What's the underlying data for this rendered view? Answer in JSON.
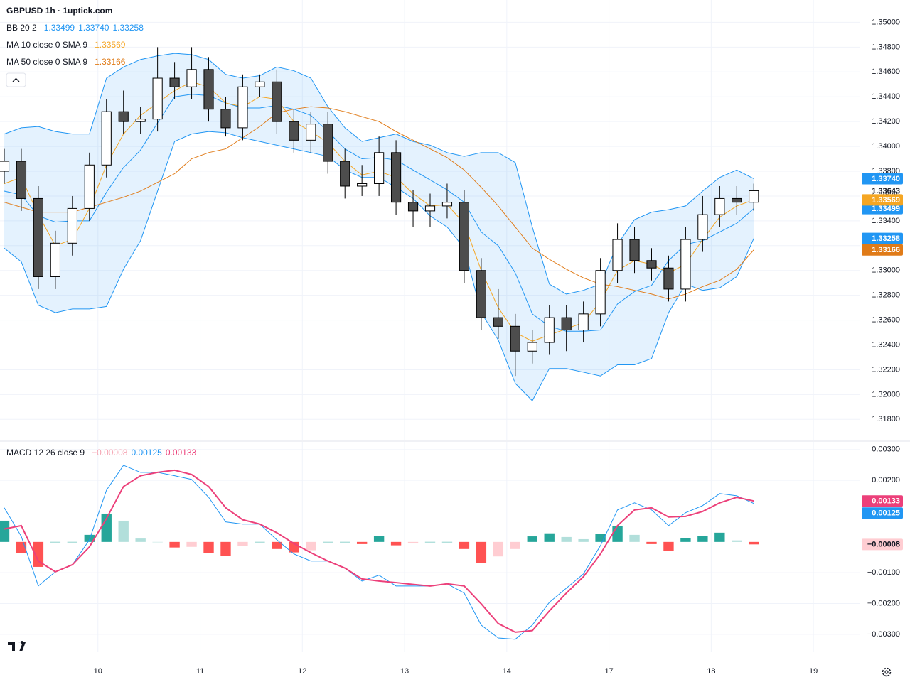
{
  "chart_data": [
    {
      "type": "candlestick",
      "title": "GBPUSD 1h · 1uptick.com",
      "x": [
        0,
        4,
        8,
        12,
        16,
        20,
        24,
        28,
        32,
        36,
        40,
        44,
        48,
        52,
        56,
        60,
        64,
        68,
        72,
        76,
        80,
        84,
        88,
        92,
        96,
        100,
        104,
        108,
        112,
        116,
        120,
        124,
        128,
        132,
        136,
        140,
        144,
        148,
        152,
        156,
        160,
        164,
        168,
        172,
        176
      ],
      "xlim": [
        -1,
        201
      ],
      "ylim": [
        1.3163,
        1.3518
      ],
      "yticks": [
        {
          "value": 1.318,
          "label": "1.31800"
        },
        {
          "value": 1.32,
          "label": "1.32000"
        },
        {
          "value": 1.322,
          "label": "1.32200"
        },
        {
          "value": 1.324,
          "label": "1.32400"
        },
        {
          "value": 1.326,
          "label": "1.32600"
        },
        {
          "value": 1.328,
          "label": "1.32800"
        },
        {
          "value": 1.33,
          "label": "1.33000"
        },
        {
          "value": 1.332,
          "label": "1.33200"
        },
        {
          "value": 1.334,
          "label": "1.33400"
        },
        {
          "value": 1.336,
          "label": "1.33600"
        },
        {
          "value": 1.338,
          "label": "1.33800"
        },
        {
          "value": 1.34,
          "label": "1.34000"
        },
        {
          "value": 1.342,
          "label": "1.34200"
        },
        {
          "value": 1.344,
          "label": "1.34400"
        },
        {
          "value": 1.346,
          "label": "1.34600"
        },
        {
          "value": 1.348,
          "label": "1.34800"
        },
        {
          "value": 1.35,
          "label": "1.35000"
        }
      ],
      "grid": true,
      "up_color": "#ffffff",
      "down_color": "#4d4d4d",
      "border_color": "#000000",
      "open": [
        1.338,
        1.3388,
        1.3358,
        1.3295,
        1.3322,
        1.335,
        1.3385,
        1.3428,
        1.342,
        1.3422,
        1.3455,
        1.3448,
        1.3462,
        1.343,
        1.3415,
        1.3448,
        1.3452,
        1.342,
        1.3405,
        1.3418,
        1.3388,
        1.3368,
        1.337,
        1.3395,
        1.3355,
        1.3348,
        1.3352,
        1.3355,
        1.33,
        1.3262,
        1.3255,
        1.3235,
        1.3242,
        1.3262,
        1.3252,
        1.3265,
        1.33,
        1.3325,
        1.3308,
        1.3302,
        1.3285,
        1.3325,
        1.3345,
        1.3358,
        1.3355
      ],
      "high": [
        1.3398,
        1.3398,
        1.3368,
        1.3332,
        1.336,
        1.3395,
        1.3438,
        1.3445,
        1.3432,
        1.348,
        1.3468,
        1.348,
        1.3472,
        1.344,
        1.3458,
        1.3458,
        1.3462,
        1.343,
        1.3428,
        1.3428,
        1.3398,
        1.3385,
        1.3408,
        1.3405,
        1.3365,
        1.3362,
        1.337,
        1.3365,
        1.331,
        1.3285,
        1.3265,
        1.3252,
        1.3272,
        1.3272,
        1.3275,
        1.331,
        1.3338,
        1.3335,
        1.3318,
        1.3312,
        1.3335,
        1.336,
        1.3368,
        1.3368,
        1.337
      ],
      "low": [
        1.337,
        1.3348,
        1.3285,
        1.3285,
        1.3312,
        1.334,
        1.3375,
        1.341,
        1.341,
        1.3412,
        1.3438,
        1.3438,
        1.342,
        1.3408,
        1.3405,
        1.344,
        1.341,
        1.3395,
        1.3395,
        1.3378,
        1.3358,
        1.336,
        1.336,
        1.3345,
        1.3335,
        1.3335,
        1.3342,
        1.329,
        1.3252,
        1.3245,
        1.3215,
        1.3225,
        1.3232,
        1.3235,
        1.3242,
        1.3255,
        1.329,
        1.3298,
        1.3292,
        1.3275,
        1.3275,
        1.3315,
        1.3335,
        1.3345,
        1.3348
      ],
      "close": [
        1.3388,
        1.3358,
        1.3295,
        1.3322,
        1.335,
        1.3385,
        1.3428,
        1.342,
        1.3422,
        1.3455,
        1.3448,
        1.3462,
        1.343,
        1.3415,
        1.3448,
        1.3452,
        1.342,
        1.3405,
        1.3418,
        1.3388,
        1.3368,
        1.337,
        1.3395,
        1.3355,
        1.3348,
        1.3352,
        1.3355,
        1.33,
        1.3262,
        1.3255,
        1.3235,
        1.3242,
        1.3262,
        1.3252,
        1.3265,
        1.33,
        1.3325,
        1.3308,
        1.3302,
        1.3285,
        1.3325,
        1.3345,
        1.3358,
        1.3355,
        1.33643
      ],
      "indicators": [
        {
          "name": "BB 20 2",
          "fill": "#2196f3",
          "lines": [
            {
              "color": "#2196f3",
              "last": 1.33499,
              "values": [
                1.3364,
                1.3361,
                1.3344,
                1.3339,
                1.334,
                1.334,
                1.3363,
                1.3383,
                1.3397,
                1.3419,
                1.344,
                1.3442,
                1.3441,
                1.3435,
                1.3431,
                1.3431,
                1.3433,
                1.343,
                1.3425,
                1.3412,
                1.3398,
                1.339,
                1.3391,
                1.3389,
                1.3381,
                1.3373,
                1.3365,
                1.3355,
                1.3331,
                1.332,
                1.3298,
                1.3265,
                1.3255,
                1.3251,
                1.3251,
                1.3252,
                1.3273,
                1.3283,
                1.3288,
                1.3308,
                1.3321,
                1.3324,
                1.3331,
                1.3338,
                1.33499
              ]
            },
            {
              "color": "#2196f3",
              "last": {
                "value": 1.3374,
                "label": "1.33740"
              },
              "values": [
                1.341,
                1.3415,
                1.3416,
                1.3412,
                1.341,
                1.341,
                1.3455,
                1.3464,
                1.347,
                1.3473,
                1.3475,
                1.3474,
                1.347,
                1.3458,
                1.3455,
                1.3457,
                1.3464,
                1.3461,
                1.3455,
                1.3432,
                1.3415,
                1.3404,
                1.3407,
                1.341,
                1.3404,
                1.3401,
                1.3395,
                1.3392,
                1.3395,
                1.3395,
                1.3387,
                1.3335,
                1.3289,
                1.3281,
                1.3284,
                1.3289,
                1.3321,
                1.3341,
                1.3347,
                1.3349,
                1.3352,
                1.3364,
                1.3375,
                1.3381,
                1.3374
              ]
            },
            {
              "color": "#2196f3",
              "last": 1.33258,
              "values": [
                1.3318,
                1.3307,
                1.3272,
                1.3266,
                1.3269,
                1.3269,
                1.3271,
                1.3301,
                1.3324,
                1.3364,
                1.3404,
                1.341,
                1.3412,
                1.3411,
                1.3407,
                1.3404,
                1.3401,
                1.3398,
                1.3395,
                1.3392,
                1.3381,
                1.3375,
                1.3375,
                1.3367,
                1.3358,
                1.3344,
                1.3335,
                1.3318,
                1.3266,
                1.3244,
                1.3209,
                1.3195,
                1.3221,
                1.3221,
                1.3218,
                1.3215,
                1.3224,
                1.3224,
                1.3229,
                1.3266,
                1.3289,
                1.3284,
                1.3286,
                1.3295,
                1.33258
              ]
            }
          ]
        },
        {
          "name": "MA 10 close 0 SMA 9",
          "lines": [
            {
              "color": "#f5a623",
              "last": 1.33569,
              "values": [
                1.337,
                1.3375,
                1.3345,
                1.332,
                1.3325,
                1.335,
                1.3385,
                1.341,
                1.3425,
                1.3435,
                1.3445,
                1.3452,
                1.3448,
                1.3435,
                1.3432,
                1.344,
                1.3438,
                1.342,
                1.3412,
                1.3403,
                1.3388,
                1.3377,
                1.338,
                1.3375,
                1.3362,
                1.3352,
                1.3353,
                1.3338,
                1.33,
                1.327,
                1.325,
                1.3243,
                1.3248,
                1.3253,
                1.3258,
                1.3275,
                1.33,
                1.3308,
                1.3305,
                1.3298,
                1.3305,
                1.3325,
                1.3343,
                1.3352,
                1.33569
              ]
            }
          ]
        },
        {
          "name": "MA 50 close 0 SMA 9",
          "lines": [
            {
              "color": "#e07b18",
              "last": 1.33166,
              "values": [
                1.3355,
                1.3351,
                1.3347,
                1.3347,
                1.3347,
                1.3351,
                1.3355,
                1.3359,
                1.3364,
                1.3371,
                1.3378,
                1.339,
                1.3395,
                1.3398,
                1.3407,
                1.3416,
                1.3427,
                1.343,
                1.3432,
                1.3431,
                1.3428,
                1.3424,
                1.342,
                1.3412,
                1.3405,
                1.3398,
                1.3391,
                1.3381,
                1.3367,
                1.3352,
                1.3335,
                1.3318,
                1.3309,
                1.3301,
                1.3294,
                1.3289,
                1.3287,
                1.3284,
                1.3281,
                1.3277,
                1.3281,
                1.3287,
                1.3292,
                1.3301,
                1.33166
              ]
            }
          ]
        }
      ]
    },
    {
      "type": "macd",
      "title": "MACD 12 26 close 9",
      "x": [
        0,
        4,
        8,
        12,
        16,
        20,
        24,
        28,
        32,
        36,
        40,
        44,
        48,
        52,
        56,
        60,
        64,
        68,
        72,
        76,
        80,
        84,
        88,
        92,
        96,
        100,
        104,
        108,
        112,
        116,
        120,
        124,
        128,
        132,
        136,
        140,
        144,
        148,
        152,
        156,
        160,
        164,
        168,
        172,
        176
      ],
      "xlim": [
        -1,
        201
      ],
      "xticks": [
        {
          "value": 22,
          "label": "10"
        },
        {
          "value": 46,
          "label": "11"
        },
        {
          "value": 70,
          "label": "12"
        },
        {
          "value": 94,
          "label": "13"
        },
        {
          "value": 118,
          "label": "14"
        },
        {
          "value": 142,
          "label": "17"
        },
        {
          "value": 166,
          "label": "18"
        },
        {
          "value": 190,
          "label": "19"
        }
      ],
      "ylim": [
        -0.00358,
        0.00325
      ],
      "yticks": [
        {
          "value": 0.003,
          "label": "0.00300"
        },
        {
          "value": 0.002,
          "label": "0.00200"
        },
        {
          "value": 0.001,
          "label": "0.00100"
        },
        {
          "value": -0.001,
          "label": "−0.00100"
        },
        {
          "value": -0.002,
          "label": "−0.00200"
        },
        {
          "value": -0.003,
          "label": "−0.00300"
        }
      ],
      "grid": true,
      "histogram": {
        "color": "#f5a3b1",
        "colors": {
          "up_rising": "#26a69a",
          "up_falling": "#b2dfdb",
          "down_falling": "#ff5252",
          "down_rising": "#ffcdd2"
        },
        "last": {
          "value": -8e-05,
          "label": "−0.00008"
        },
        "values": [
          0.00069,
          -0.00035,
          -0.00081,
          0,
          0,
          0.00023,
          0.00092,
          0.00069,
          0.00011,
          0,
          -0.00018,
          -0.00016,
          -0.00035,
          -0.00046,
          -0.00014,
          0,
          -0.00023,
          -0.00034,
          -0.00027,
          0,
          0,
          -7e-05,
          0.00019,
          -0.00011,
          -5e-05,
          0,
          0,
          -0.00023,
          -0.00069,
          -0.00047,
          -0.00023,
          0.00018,
          0.00028,
          0.00016,
          9e-05,
          0.00027,
          0.00051,
          0.00023,
          -7e-05,
          -0.00028,
          0.00012,
          0.00019,
          0.0003,
          5e-05,
          -8e-05
        ]
      },
      "lines": [
        {
          "color": "#2196f3",
          "last": 0.00125,
          "values": [
            0.00111,
            0.00018,
            -0.00143,
            -0.00097,
            -0.00074,
            7e-05,
            0.00168,
            0.00249,
            0.00226,
            0.00226,
            0.00215,
            0.00203,
            0.00145,
            0.00065,
            0.00058,
            0.00058,
            7e-05,
            -0.00039,
            -0.00062,
            -0.00062,
            -0.00085,
            -0.00127,
            -0.00108,
            -0.00143,
            -0.00143,
            -0.00143,
            -0.00136,
            -0.00166,
            -0.0027,
            -0.00312,
            -0.00316,
            -0.0027,
            -0.00196,
            -0.0015,
            -0.00104,
            -0.00012,
            0.00104,
            0.00127,
            0.00104,
            0.00053,
            0.00095,
            0.00118,
            0.00157,
            0.0015,
            0.00125
          ]
        },
        {
          "color": "#ec407a",
          "last": 0.00133,
          "values": [
            0.00042,
            0.00053,
            -0.00062,
            -0.00097,
            -0.00074,
            -0.00016,
            0.00076,
            0.0018,
            0.00215,
            0.00226,
            0.00233,
            0.00219,
            0.0018,
            0.00111,
            0.00072,
            0.00058,
            0.0003,
            -5e-05,
            -0.00035,
            -0.00062,
            -0.00085,
            -0.0012,
            -0.00127,
            -0.00132,
            -0.00138,
            -0.00143,
            -0.00136,
            -0.00143,
            -0.00201,
            -0.00265,
            -0.00293,
            -0.00288,
            -0.00224,
            -0.00166,
            -0.00113,
            -0.00039,
            0.00053,
            0.00104,
            0.00111,
            0.00081,
            0.00083,
            0.00099,
            0.00127,
            0.00145,
            0.00133
          ]
        }
      ]
    }
  ]
}
